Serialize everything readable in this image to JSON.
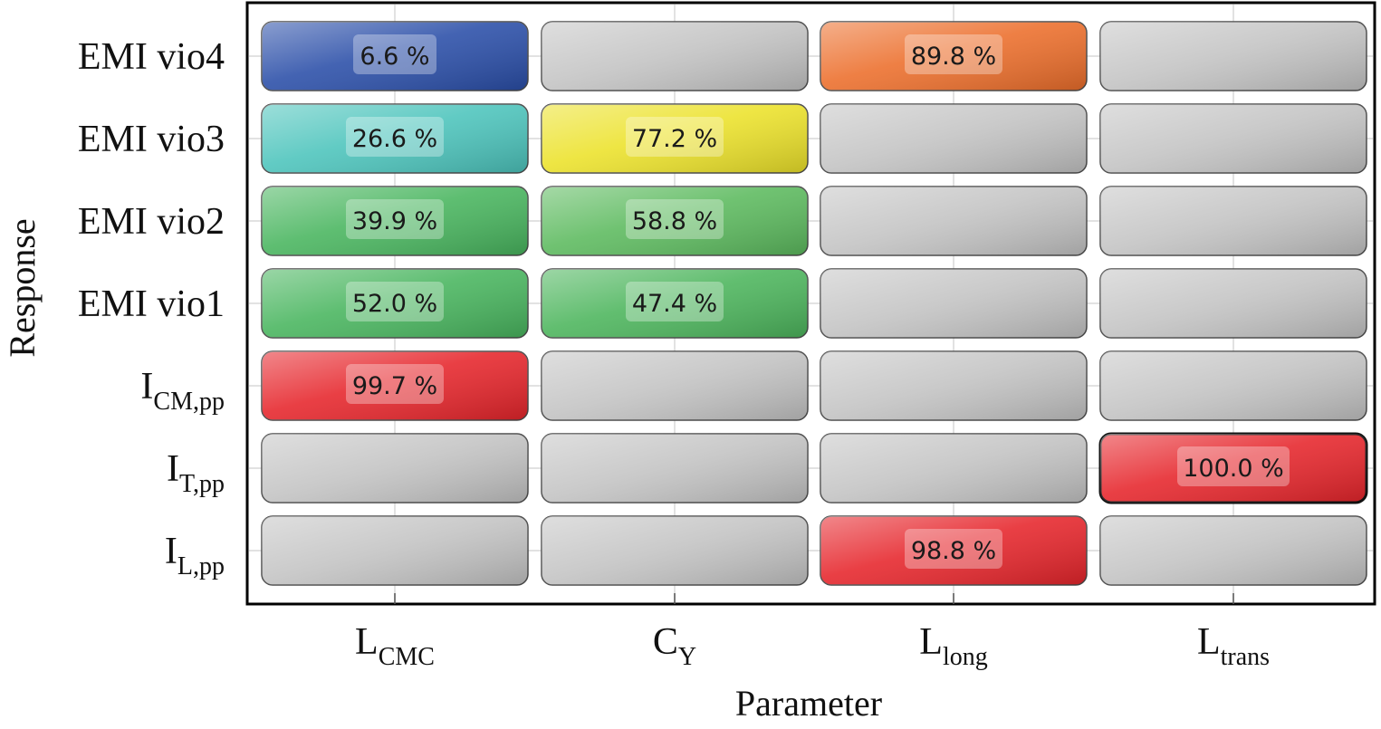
{
  "chart_data": {
    "type": "heatmap",
    "xlabel": "Parameter",
    "ylabel": "Response",
    "columns": [
      {
        "main": "L",
        "sub": "CMC"
      },
      {
        "main": "C",
        "sub": "Y"
      },
      {
        "main": "L",
        "sub": "long"
      },
      {
        "main": "L",
        "sub": "trans"
      }
    ],
    "rows": [
      {
        "main": "EMI vio4",
        "sub": ""
      },
      {
        "main": "EMI vio3",
        "sub": ""
      },
      {
        "main": "EMI vio2",
        "sub": ""
      },
      {
        "main": "EMI vio1",
        "sub": ""
      },
      {
        "main": "I",
        "sub": "CM,pp"
      },
      {
        "main": "I",
        "sub": "T,pp"
      },
      {
        "main": "I",
        "sub": "L,pp"
      }
    ],
    "values": [
      [
        6.6,
        null,
        89.8,
        null
      ],
      [
        26.6,
        77.2,
        null,
        null
      ],
      [
        39.9,
        58.8,
        null,
        null
      ],
      [
        52.0,
        47.4,
        null,
        null
      ],
      [
        99.7,
        null,
        null,
        null
      ],
      [
        null,
        null,
        null,
        100.0
      ],
      [
        null,
        null,
        98.8,
        null
      ]
    ],
    "labels": [
      [
        "6.6 %",
        "",
        "89.8 %",
        ""
      ],
      [
        "26.6 %",
        "77.2 %",
        "",
        ""
      ],
      [
        "39.9 %",
        "58.8 %",
        "",
        ""
      ],
      [
        "52.0 %",
        "47.4 %",
        "",
        ""
      ],
      [
        "99.7 %",
        "",
        "",
        ""
      ],
      [
        "",
        "",
        "",
        "100.0 %"
      ],
      [
        "",
        "",
        "98.8 %",
        ""
      ]
    ],
    "cell_colors": [
      [
        "#2a4ea8",
        "#c4c4c4",
        "#ec6e2b",
        "#c4c4c4"
      ],
      [
        "#4cc4bc",
        "#ece22a",
        "#c4c4c4",
        "#c4c4c4"
      ],
      [
        "#48b55e",
        "#5cba5e",
        "#c4c4c4",
        "#c4c4c4"
      ],
      [
        "#48b55e",
        "#4cb55c",
        "#c4c4c4",
        "#c4c4c4"
      ],
      [
        "#e6252b",
        "#c4c4c4",
        "#c4c4c4",
        "#c4c4c4"
      ],
      [
        "#c4c4c4",
        "#c4c4c4",
        "#c4c4c4",
        "#e6252b"
      ],
      [
        "#c4c4c4",
        "#c4c4c4",
        "#e6252b",
        "#c4c4c4"
      ]
    ],
    "highlighted_cell": [
      5,
      3
    ],
    "grid": true
  }
}
